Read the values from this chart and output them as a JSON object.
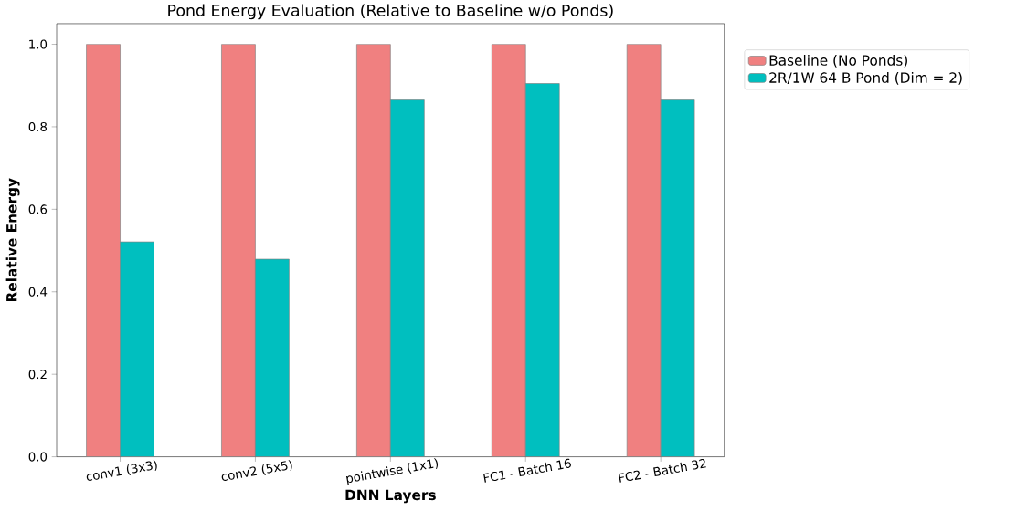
{
  "chart_data": {
    "type": "bar",
    "title": "Pond Energy Evaluation (Relative to Baseline w/o Ponds)",
    "xlabel": "DNN Layers",
    "ylabel": "Relative Energy",
    "categories": [
      "conv1 (3x3)",
      "conv2 (5x5)",
      "pointwise (1x1)",
      "FC1 - Batch 16",
      "FC2 - Batch 32"
    ],
    "series": [
      {
        "name": "Baseline (No Ponds)",
        "color": "#f08080",
        "values": [
          1.0,
          1.0,
          1.0,
          1.0,
          1.0
        ]
      },
      {
        "name": "2R/1W 64 B Pond (Dim = 2)",
        "color": "#00bfbf",
        "values": [
          0.521,
          0.479,
          0.865,
          0.905,
          0.865
        ]
      }
    ],
    "ylim": [
      0,
      1.05
    ],
    "yticks": [
      {
        "value": 0,
        "label": "0.0"
      },
      {
        "value": 0.2,
        "label": "0.2"
      },
      {
        "value": 0.4,
        "label": "0.4"
      },
      {
        "value": 0.6,
        "label": "0.6"
      },
      {
        "value": 0.8,
        "label": "0.8"
      },
      {
        "value": 1.0,
        "label": "1.0"
      }
    ],
    "grid": false,
    "legend": "right"
  }
}
